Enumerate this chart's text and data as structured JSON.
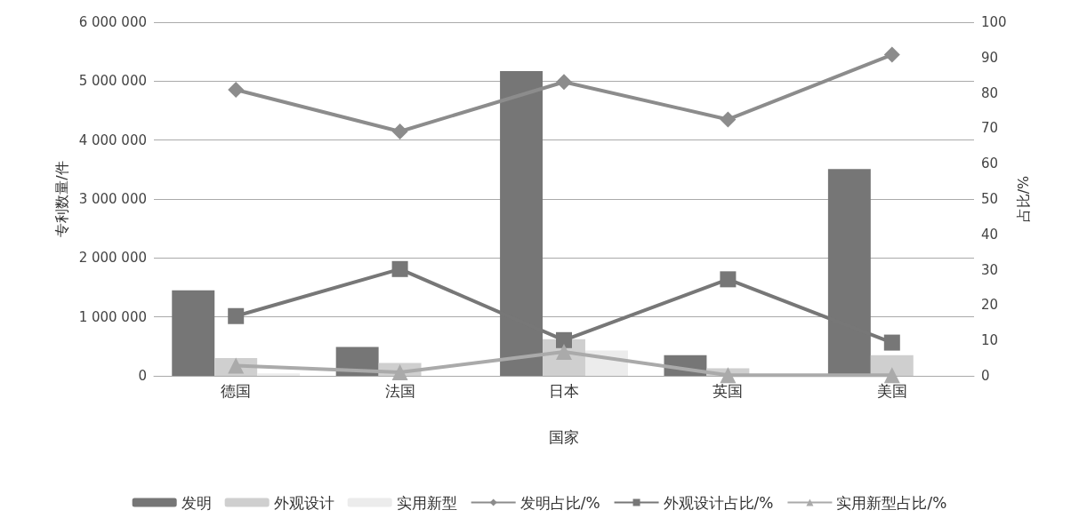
{
  "chart_data": {
    "type": "bar",
    "xlabel": "国家",
    "ylabel": "专利数量/件",
    "y2label": "占比/%",
    "categories": [
      "德国",
      "法国",
      "日本",
      "英国",
      "美国"
    ],
    "series": [
      {
        "name": "发明",
        "color": "#767676",
        "values": [
          1450000,
          490000,
          5170000,
          350000,
          3510000
        ]
      },
      {
        "name": "外观设计",
        "color": "#cfcfcf",
        "values": [
          300000,
          220000,
          620000,
          130000,
          350000
        ]
      },
      {
        "name": "实用新型",
        "color": "#ececec",
        "values": [
          40000,
          null,
          430000,
          null,
          null
        ]
      },
      {
        "name": "发明占比/%",
        "type": "line",
        "axis": "y2",
        "marker": "diamond",
        "color": "#8c8c8c",
        "values": [
          80.9,
          69.1,
          83.1,
          72.5,
          90.8
        ]
      },
      {
        "name": "外观设计占比/%",
        "type": "line",
        "axis": "y2",
        "marker": "square",
        "color": "#777777",
        "values": [
          16.9,
          30.2,
          10.1,
          27.3,
          9.4
        ]
      },
      {
        "name": "实用新型占比/%",
        "type": "line",
        "axis": "y2",
        "marker": "triangle",
        "color": "#aaaaaa",
        "values": [
          2.9,
          1.0,
          6.8,
          0.2,
          0.2
        ]
      }
    ],
    "ylim": [
      0,
      6000000
    ],
    "yticks": [
      0,
      1000000,
      2000000,
      3000000,
      4000000,
      5000000,
      6000000
    ],
    "y2lim": [
      0,
      100
    ],
    "y2ticks": [
      0,
      10,
      20,
      30,
      40,
      50,
      60,
      70,
      80,
      90,
      100
    ],
    "grid": "y",
    "legend": "bottom"
  }
}
